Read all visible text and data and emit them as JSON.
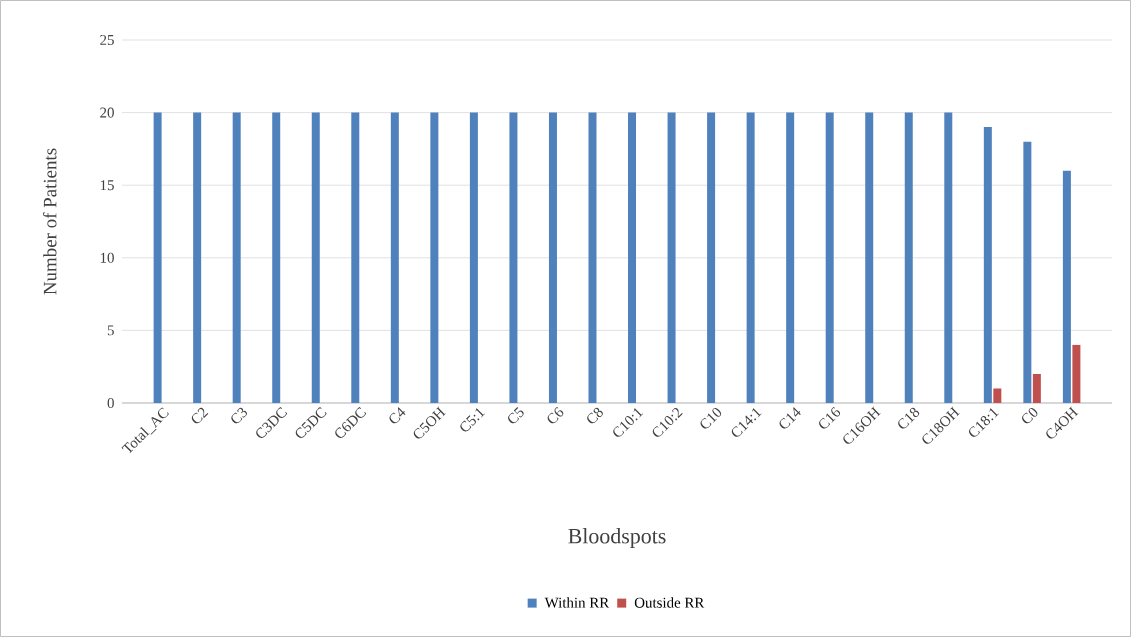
{
  "chart_data": {
    "type": "bar",
    "xlabel": "Bloodspots",
    "ylabel": "Number of Patients",
    "categories": [
      "Total_AC",
      "C2",
      "C3",
      "C3DC",
      "C5DC",
      "C6DC",
      "C4",
      "C5OH",
      "C5:1",
      "C5",
      "C6",
      "C8",
      "C10:1",
      "C10:2",
      "C10",
      "C14:1",
      "C14",
      "C16",
      "C16OH",
      "C18",
      "C18OH",
      "C18:1",
      "C0",
      "C4OH"
    ],
    "series": [
      {
        "name": "Within RR",
        "color": "#4f81bd",
        "values": [
          20,
          20,
          20,
          20,
          20,
          20,
          20,
          20,
          20,
          20,
          20,
          20,
          20,
          20,
          20,
          20,
          20,
          20,
          20,
          20,
          20,
          19,
          18,
          16
        ]
      },
      {
        "name": "Outside RR",
        "color": "#c0504d",
        "values": [
          0,
          0,
          0,
          0,
          0,
          0,
          0,
          0,
          0,
          0,
          0,
          0,
          0,
          0,
          0,
          0,
          0,
          0,
          0,
          0,
          0,
          1,
          2,
          4
        ]
      }
    ],
    "ylim": [
      0,
      25
    ],
    "yticks": [
      0,
      5,
      10,
      15,
      20,
      25
    ],
    "grid": "y",
    "legend": "bottom"
  }
}
